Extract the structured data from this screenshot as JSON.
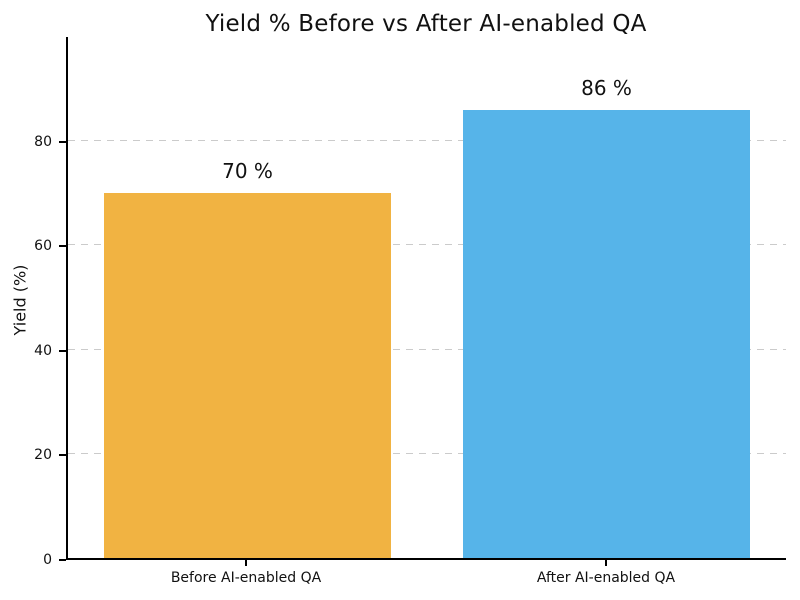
{
  "figure": {
    "background": "#ffffff",
    "text_color": "#111111",
    "axis_color": "#000000"
  },
  "chart_data": {
    "type": "bar",
    "title": "Yield % Before vs After AI-enabled QA",
    "xlabel": "",
    "ylabel": "Yield (%)",
    "categories": [
      "Before AI-enabled QA",
      "After AI-enabled QA"
    ],
    "values": [
      70,
      86
    ],
    "bar_labels": [
      "70 %",
      "86 %"
    ],
    "bar_colors": [
      "#f1b342",
      "#56b4e9"
    ],
    "ylim": [
      0,
      100
    ],
    "yticks": [
      0,
      20,
      40,
      60,
      80
    ],
    "bar_width_fraction": 0.8,
    "grid": {
      "axis": "y",
      "style": "dashed",
      "color": "#cbcbcb"
    },
    "legend_position": "none"
  }
}
